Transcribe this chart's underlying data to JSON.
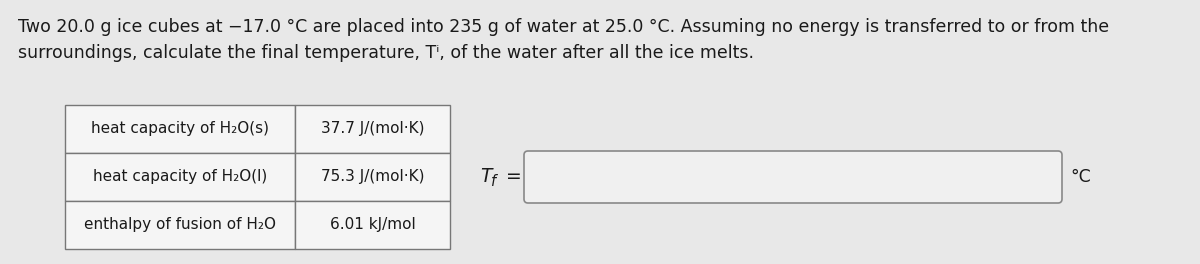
{
  "background_color": "#e8e8e8",
  "text_color": "#1a1a1a",
  "para_line1": "Two 20.0 g ice cubes at −17.0 °C are placed into 235 g of water at 25.0 °C. Assuming no energy is transferred to or from the",
  "para_line2": "surroundings, calculate the final temperature, Tⁱ, of the water after all the ice melts.",
  "table_rows": [
    [
      "heat capacity of H₂O(s)",
      "37.7 J/(mol·K)"
    ],
    [
      "heat capacity of H₂O(l)",
      "75.3 J/(mol·K)"
    ],
    [
      "enthalpy of fusion of H₂O",
      "6.01 kJ/mol"
    ]
  ],
  "tf_label_italic": "T",
  "tf_label_sub": "f",
  "tf_label_eq": " =",
  "unit_label": "°C",
  "fig_width": 12.0,
  "fig_height": 2.64,
  "dpi": 100,
  "font_size_para": 12.5,
  "font_size_table": 11.0,
  "font_size_tf": 12.5,
  "table_bg": "#f5f5f5",
  "input_box_color": "#f0f0f0"
}
